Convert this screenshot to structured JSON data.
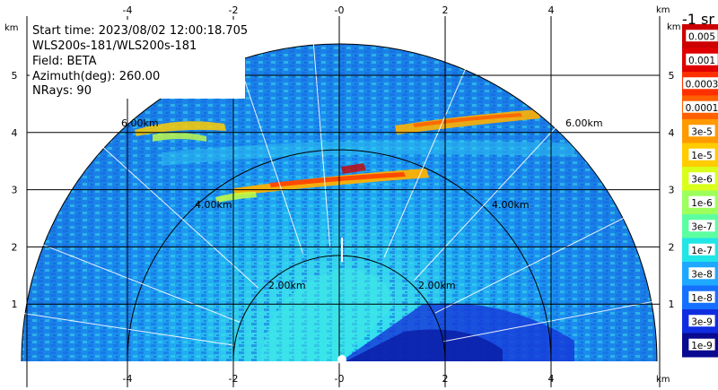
{
  "info": {
    "start_time": "Start time: 2023/08/02 12:00:18.705",
    "site": "WLS200s-181/WLS200s-181",
    "field": "Field: BETA",
    "azimuth": "Azimuth(deg): 260.00",
    "nrays": "NRays: 90"
  },
  "axes": {
    "x_ticks": [
      "-4",
      "-2",
      "-0",
      "2",
      "4"
    ],
    "y_ticks": [
      "1",
      "2",
      "3",
      "4",
      "5"
    ],
    "unit": "km"
  },
  "ring_labels": [
    "2.00km",
    "4.00km",
    "6.00km"
  ],
  "colorbar": {
    "title": "-1 sr",
    "labels": [
      "0.005",
      "0.001",
      "0.0003",
      "0.0001",
      "3e-5",
      "1e-5",
      "3e-6",
      "1e-6",
      "3e-7",
      "1e-7",
      "3e-8",
      "1e-8",
      "3e-9",
      "1e-9"
    ],
    "colors": [
      "#cc0000",
      "#e00000",
      "#ff3000",
      "#ff6000",
      "#ff9a00",
      "#ffcc00",
      "#d9ff1a",
      "#9dff5c",
      "#5cffa0",
      "#20e6e6",
      "#1fa8ff",
      "#1570ff",
      "#0f2de0",
      "#0a0a90"
    ]
  },
  "chart_data": {
    "type": "heatmap",
    "title": "",
    "field": "BETA",
    "units": "sr-1",
    "scale": "log",
    "x_range": [
      -6,
      6
    ],
    "y_range": [
      0,
      5.5
    ],
    "range_rings_km": [
      2,
      4,
      6
    ],
    "colorbar_labels": [
      "0.005",
      "0.001",
      "0.0003",
      "0.0001",
      "3e-5",
      "1e-5",
      "3e-6",
      "1e-6",
      "3e-7",
      "1e-7",
      "3e-8",
      "1e-8",
      "3e-9",
      "1e-9"
    ],
    "features": [
      {
        "name": "layer",
        "height_km": 3.1,
        "value": "3e-5"
      },
      {
        "name": "upper layer",
        "height_km": 4.1,
        "value": "1e-5"
      }
    ],
    "grid": true
  }
}
